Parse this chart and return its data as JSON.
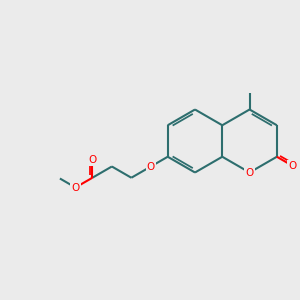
{
  "bg_color": "#ebebeb",
  "bond_color": "#2d6e6e",
  "O_color": "#ff0000",
  "bond_width": 1.5,
  "dbo": 0.09,
  "figsize": [
    3.0,
    3.0
  ],
  "dpi": 100,
  "xlim": [
    0,
    10
  ],
  "ylim": [
    0,
    10
  ],
  "hex_r": 1.05
}
